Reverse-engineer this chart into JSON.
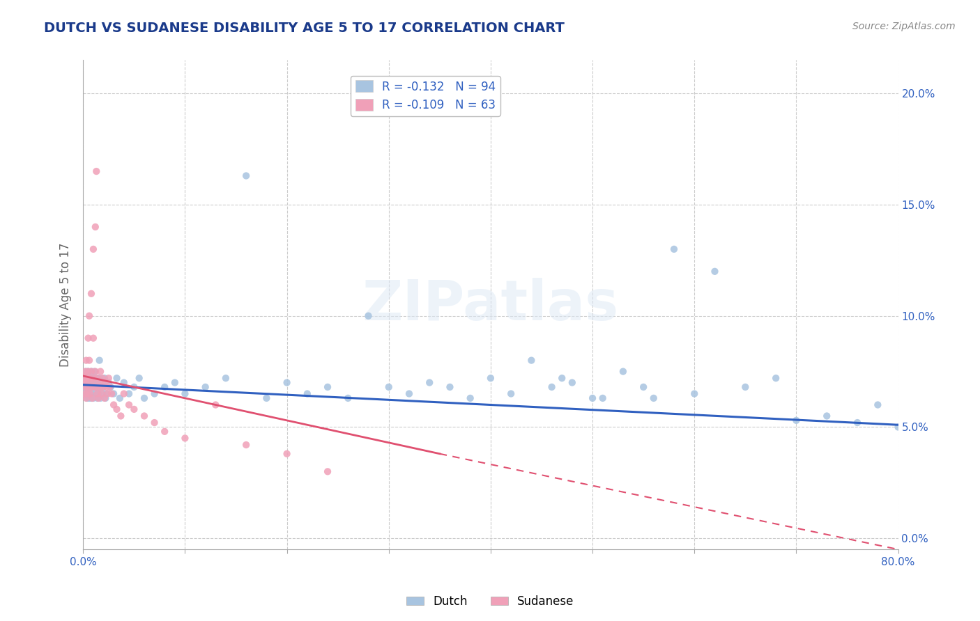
{
  "title": "DUTCH VS SUDANESE DISABILITY AGE 5 TO 17 CORRELATION CHART",
  "source": "Source: ZipAtlas.com",
  "ylabel": "Disability Age 5 to 17",
  "xlim": [
    0,
    0.8
  ],
  "ylim": [
    -0.005,
    0.215
  ],
  "xticks": [
    0.0,
    0.1,
    0.2,
    0.3,
    0.4,
    0.5,
    0.6,
    0.7,
    0.8
  ],
  "yticks": [
    0.0,
    0.05,
    0.1,
    0.15,
    0.2
  ],
  "dutch_color": "#a8c4e0",
  "sudanese_color": "#f0a0b8",
  "dutch_line_color": "#3060c0",
  "sudanese_line_color": "#e05070",
  "R_dutch": -0.132,
  "N_dutch": 94,
  "R_sudanese": -0.109,
  "N_sudanese": 63,
  "legend_label_dutch": "Dutch",
  "legend_label_sudanese": "Sudanese",
  "title_color": "#1a3a8a",
  "axis_label_color": "#666666",
  "tick_color": "#444444",
  "right_tick_color": "#3060c0",
  "watermark": "ZIPatlas",
  "background_color": "#ffffff",
  "dutch_points": [
    [
      0.001,
      0.068
    ],
    [
      0.002,
      0.072
    ],
    [
      0.002,
      0.065
    ],
    [
      0.003,
      0.07
    ],
    [
      0.003,
      0.068
    ],
    [
      0.003,
      0.075
    ],
    [
      0.004,
      0.063
    ],
    [
      0.004,
      0.072
    ],
    [
      0.004,
      0.068
    ],
    [
      0.005,
      0.07
    ],
    [
      0.005,
      0.065
    ],
    [
      0.005,
      0.075
    ],
    [
      0.006,
      0.068
    ],
    [
      0.006,
      0.072
    ],
    [
      0.006,
      0.063
    ],
    [
      0.007,
      0.07
    ],
    [
      0.007,
      0.065
    ],
    [
      0.007,
      0.068
    ],
    [
      0.008,
      0.072
    ],
    [
      0.008,
      0.063
    ],
    [
      0.008,
      0.075
    ],
    [
      0.009,
      0.068
    ],
    [
      0.009,
      0.07
    ],
    [
      0.009,
      0.065
    ],
    [
      0.01,
      0.072
    ],
    [
      0.01,
      0.063
    ],
    [
      0.011,
      0.068
    ],
    [
      0.011,
      0.075
    ],
    [
      0.012,
      0.07
    ],
    [
      0.012,
      0.065
    ],
    [
      0.013,
      0.068
    ],
    [
      0.013,
      0.072
    ],
    [
      0.014,
      0.063
    ],
    [
      0.014,
      0.07
    ],
    [
      0.015,
      0.065
    ],
    [
      0.015,
      0.068
    ],
    [
      0.016,
      0.08
    ],
    [
      0.016,
      0.072
    ],
    [
      0.017,
      0.063
    ],
    [
      0.017,
      0.068
    ],
    [
      0.018,
      0.07
    ],
    [
      0.019,
      0.065
    ],
    [
      0.02,
      0.068
    ],
    [
      0.021,
      0.072
    ],
    [
      0.022,
      0.063
    ],
    [
      0.023,
      0.065
    ],
    [
      0.025,
      0.07
    ],
    [
      0.027,
      0.068
    ],
    [
      0.03,
      0.065
    ],
    [
      0.033,
      0.072
    ],
    [
      0.036,
      0.063
    ],
    [
      0.04,
      0.07
    ],
    [
      0.045,
      0.065
    ],
    [
      0.05,
      0.068
    ],
    [
      0.055,
      0.072
    ],
    [
      0.06,
      0.063
    ],
    [
      0.07,
      0.065
    ],
    [
      0.08,
      0.068
    ],
    [
      0.09,
      0.07
    ],
    [
      0.1,
      0.065
    ],
    [
      0.12,
      0.068
    ],
    [
      0.14,
      0.072
    ],
    [
      0.16,
      0.163
    ],
    [
      0.18,
      0.063
    ],
    [
      0.2,
      0.07
    ],
    [
      0.22,
      0.065
    ],
    [
      0.24,
      0.068
    ],
    [
      0.26,
      0.063
    ],
    [
      0.28,
      0.1
    ],
    [
      0.3,
      0.068
    ],
    [
      0.32,
      0.065
    ],
    [
      0.34,
      0.07
    ],
    [
      0.36,
      0.068
    ],
    [
      0.38,
      0.063
    ],
    [
      0.4,
      0.072
    ],
    [
      0.42,
      0.065
    ],
    [
      0.44,
      0.08
    ],
    [
      0.46,
      0.068
    ],
    [
      0.48,
      0.07
    ],
    [
      0.5,
      0.063
    ],
    [
      0.53,
      0.075
    ],
    [
      0.56,
      0.063
    ],
    [
      0.58,
      0.13
    ],
    [
      0.6,
      0.065
    ],
    [
      0.62,
      0.12
    ],
    [
      0.65,
      0.068
    ],
    [
      0.68,
      0.072
    ],
    [
      0.7,
      0.053
    ],
    [
      0.73,
      0.055
    ],
    [
      0.76,
      0.052
    ],
    [
      0.78,
      0.06
    ],
    [
      0.8,
      0.05
    ],
    [
      0.55,
      0.068
    ],
    [
      0.51,
      0.063
    ],
    [
      0.47,
      0.072
    ]
  ],
  "sudanese_points": [
    [
      0.001,
      0.073
    ],
    [
      0.001,
      0.07
    ],
    [
      0.002,
      0.068
    ],
    [
      0.002,
      0.075
    ],
    [
      0.002,
      0.065
    ],
    [
      0.003,
      0.07
    ],
    [
      0.003,
      0.08
    ],
    [
      0.003,
      0.063
    ],
    [
      0.004,
      0.072
    ],
    [
      0.004,
      0.068
    ],
    [
      0.004,
      0.065
    ],
    [
      0.005,
      0.09
    ],
    [
      0.005,
      0.075
    ],
    [
      0.005,
      0.068
    ],
    [
      0.006,
      0.1
    ],
    [
      0.006,
      0.08
    ],
    [
      0.006,
      0.072
    ],
    [
      0.007,
      0.068
    ],
    [
      0.007,
      0.065
    ],
    [
      0.008,
      0.11
    ],
    [
      0.008,
      0.075
    ],
    [
      0.008,
      0.068
    ],
    [
      0.009,
      0.07
    ],
    [
      0.009,
      0.063
    ],
    [
      0.01,
      0.13
    ],
    [
      0.01,
      0.09
    ],
    [
      0.01,
      0.072
    ],
    [
      0.011,
      0.068
    ],
    [
      0.012,
      0.14
    ],
    [
      0.012,
      0.075
    ],
    [
      0.013,
      0.165
    ],
    [
      0.013,
      0.068
    ],
    [
      0.014,
      0.072
    ],
    [
      0.014,
      0.065
    ],
    [
      0.015,
      0.068
    ],
    [
      0.015,
      0.063
    ],
    [
      0.016,
      0.07
    ],
    [
      0.017,
      0.075
    ],
    [
      0.017,
      0.068
    ],
    [
      0.018,
      0.065
    ],
    [
      0.019,
      0.072
    ],
    [
      0.02,
      0.068
    ],
    [
      0.021,
      0.063
    ],
    [
      0.022,
      0.07
    ],
    [
      0.023,
      0.068
    ],
    [
      0.024,
      0.065
    ],
    [
      0.025,
      0.072
    ],
    [
      0.026,
      0.068
    ],
    [
      0.028,
      0.065
    ],
    [
      0.03,
      0.06
    ],
    [
      0.033,
      0.058
    ],
    [
      0.037,
      0.055
    ],
    [
      0.04,
      0.065
    ],
    [
      0.045,
      0.06
    ],
    [
      0.05,
      0.058
    ],
    [
      0.06,
      0.055
    ],
    [
      0.07,
      0.052
    ],
    [
      0.08,
      0.048
    ],
    [
      0.1,
      0.045
    ],
    [
      0.13,
      0.06
    ],
    [
      0.16,
      0.042
    ],
    [
      0.2,
      0.038
    ],
    [
      0.24,
      0.03
    ]
  ]
}
